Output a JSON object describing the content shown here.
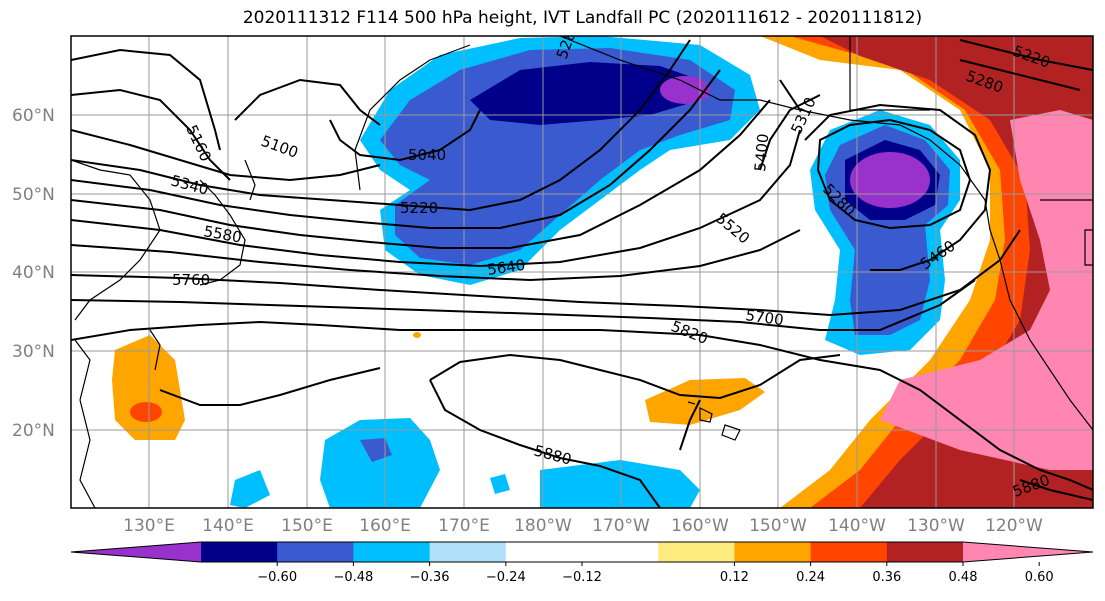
{
  "title": "2020111312 F114 500 hPa height, IVT Landfall PC (2020111612 - 2020111812)",
  "map": {
    "lat_labels": [
      "60°N",
      "50°N",
      "40°N",
      "30°N",
      "20°N"
    ],
    "lon_labels": [
      "130°E",
      "140°E",
      "150°E",
      "160°E",
      "170°E",
      "180°W",
      "170°W",
      "160°W",
      "150°W",
      "140°W",
      "130°W",
      "120°W"
    ],
    "contour_labels": [
      "5160",
      "5100",
      "5040",
      "5340",
      "5220",
      "5580",
      "5760",
      "5640",
      "528",
      "5400",
      "5310",
      "5280",
      "5220",
      "5280",
      "5520",
      "5460",
      "5700",
      "5820",
      "5880",
      "5880"
    ]
  },
  "colorbar": {
    "colors": [
      "#9932cc",
      "#00008b",
      "#3a5bcf",
      "#00bfff",
      "#b0e0fa",
      "#ffffff",
      "#ffffff",
      "#ffec80",
      "#ffa500",
      "#ff4500",
      "#b22222",
      "#ff86b0"
    ],
    "tick_labels": [
      "−0.60",
      "−0.48",
      "−0.36",
      "−0.24",
      "−0.12",
      "0.12",
      "0.24",
      "0.36",
      "0.48",
      "0.60"
    ]
  }
}
